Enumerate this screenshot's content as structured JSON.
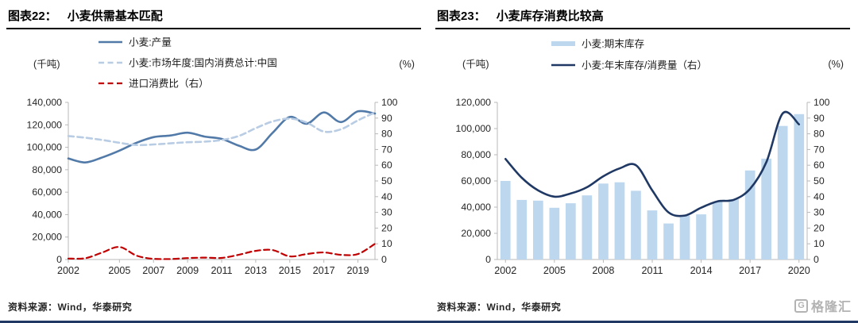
{
  "logo": {
    "icon_letter": "G",
    "text": "格隆汇"
  },
  "chart_data": [
    {
      "type": "line",
      "header_label": "图表22：",
      "title": "小麦供需基本匹配",
      "source": "资料来源：Wind，华泰研究",
      "x": [
        2002,
        2003,
        2004,
        2005,
        2006,
        2007,
        2008,
        2009,
        2010,
        2011,
        2012,
        2013,
        2014,
        2015,
        2016,
        2017,
        2018,
        2019,
        2020
      ],
      "x_tick_indices": [
        0,
        3,
        5,
        7,
        9,
        11,
        13,
        15,
        17
      ],
      "left_axis": {
        "label": "(千吨)",
        "min": 0,
        "max": 140000,
        "step": 20000
      },
      "right_axis": {
        "label": "(%)",
        "min": 0,
        "max": 100,
        "step": 10
      },
      "legend_position": "top",
      "grid": false,
      "series": [
        {
          "key": "production",
          "name": "小麦:产量",
          "type": "line",
          "style": "solid",
          "axis": "left",
          "color": "#527aa8",
          "width": 2.6,
          "values": [
            90000,
            86500,
            91000,
            97000,
            104000,
            109000,
            110500,
            113000,
            109500,
            107500,
            101500,
            98000,
            113000,
            127000,
            121000,
            131000,
            122500,
            132000,
            130000
          ]
        },
        {
          "key": "domestic-consumption",
          "name": "小麦:市场年度:国内消费总计:中国",
          "type": "line",
          "style": "dashed",
          "axis": "left",
          "color": "#b8cce4",
          "width": 2.6,
          "values": [
            110000,
            108500,
            106500,
            104000,
            102000,
            102500,
            103500,
            104500,
            105000,
            106500,
            110000,
            117000,
            123000,
            125500,
            122000,
            114000,
            116000,
            124000,
            131000
          ]
        },
        {
          "key": "import-consumption-ratio",
          "name": "进口消费比（右）",
          "type": "line",
          "style": "dashed",
          "axis": "right",
          "color": "#c00000",
          "width": 2.2,
          "values": [
            0.6,
            0.8,
            4.5,
            8,
            2.5,
            0.4,
            0.3,
            0.9,
            1.2,
            1,
            3,
            5.5,
            6,
            2,
            3.5,
            4.5,
            3,
            3.5,
            10
          ]
        }
      ]
    },
    {
      "type": "bar+line",
      "header_label": "图表23：",
      "title": "小麦库存消费比较高",
      "source": "资料来源：Wind，华泰研究",
      "x": [
        2002,
        2003,
        2004,
        2005,
        2006,
        2007,
        2008,
        2009,
        2010,
        2011,
        2012,
        2013,
        2014,
        2015,
        2016,
        2017,
        2018,
        2019,
        2020
      ],
      "x_tick_indices": [
        0,
        3,
        6,
        9,
        12,
        15,
        18
      ],
      "left_axis": {
        "label": "(千吨)",
        "min": 0,
        "max": 120000,
        "step": 20000
      },
      "right_axis": {
        "label": "(%)",
        "min": 0,
        "max": 100,
        "step": 10
      },
      "legend_position": "top",
      "grid": false,
      "series": [
        {
          "key": "ending-stocks",
          "name": "小麦:期末库存",
          "type": "bar",
          "axis": "left",
          "color": "#bdd7ee",
          "values": [
            60000,
            45500,
            45000,
            39500,
            43000,
            49000,
            58000,
            59000,
            52500,
            37500,
            27500,
            33500,
            34500,
            44000,
            46000,
            68000,
            77000,
            102000,
            111000
          ]
        },
        {
          "key": "stock-consumption-ratio",
          "name": "小麦:年末库存/消费量（右）",
          "type": "line",
          "style": "solid",
          "axis": "right",
          "color": "#1f3864",
          "width": 2.6,
          "values": [
            64,
            52,
            44,
            40,
            42,
            46,
            53,
            58,
            60,
            44,
            30,
            28,
            33,
            37,
            38,
            45,
            62,
            93,
            86
          ]
        }
      ]
    }
  ]
}
